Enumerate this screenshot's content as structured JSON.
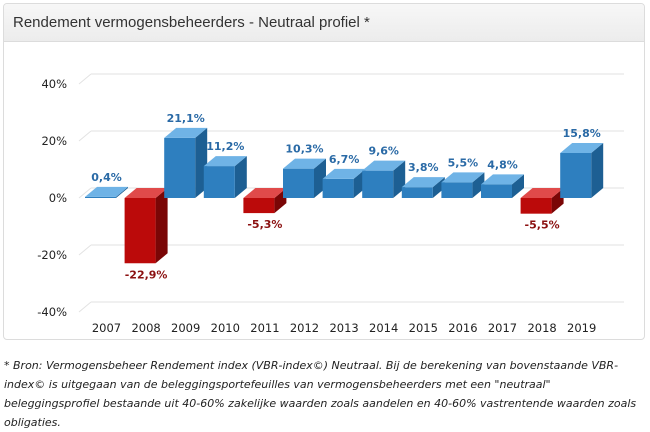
{
  "panel": {
    "title": "Rendement vermogensbeheerders - Neutraal profiel *"
  },
  "chart_data": {
    "type": "bar",
    "title": "Rendement vermogensbeheerders - Neutraal profiel *",
    "xlabel": "",
    "ylabel": "",
    "ylim": [
      -40,
      40
    ],
    "yticks": [
      40,
      20,
      0,
      -20,
      -40
    ],
    "ytick_labels": [
      "40%",
      "20%",
      "0%",
      "-20%",
      "-40%"
    ],
    "grid": true,
    "categories": [
      "2007",
      "2008",
      "2009",
      "2010",
      "2011",
      "2012",
      "2013",
      "2014",
      "2015",
      "2016",
      "2017",
      "2018",
      "2019"
    ],
    "values": [
      0.4,
      -22.9,
      21.1,
      11.2,
      -5.3,
      10.3,
      6.7,
      9.6,
      3.8,
      5.5,
      4.8,
      -5.5,
      15.8
    ],
    "labels": [
      "0,4%",
      "-22,9%",
      "21,1%",
      "11,2%",
      "-5,3%",
      "10,3%",
      "6,7%",
      "9,6%",
      "3,8%",
      "5,5%",
      "4,8%",
      "-5,5%",
      "15,8%"
    ],
    "colors": {
      "positive_front": "#2e7fbf",
      "positive_top": "#6fb3e6",
      "positive_side": "#1d5f93",
      "positive_label": "#2a6aa6",
      "negative_front": "#bb0a0a",
      "negative_top": "#e04a4a",
      "negative_side": "#7a0606",
      "negative_label": "#8b1010",
      "grid": "#e2e2e2"
    }
  },
  "footnote": {
    "text": "* Bron: Vermogensbeheer Rendement index (VBR-index©) Neutraal. Bij de berekening van bovenstaande VBR-index© is uitgegaan van de beleggingsportefeuilles van vermogensbeheerders met een \"neutraal\" beleggingsprofiel bestaande uit 40-60% zakelijke waarden zoals aandelen en 40-60% vastrentende waarden zoals obligaties."
  }
}
